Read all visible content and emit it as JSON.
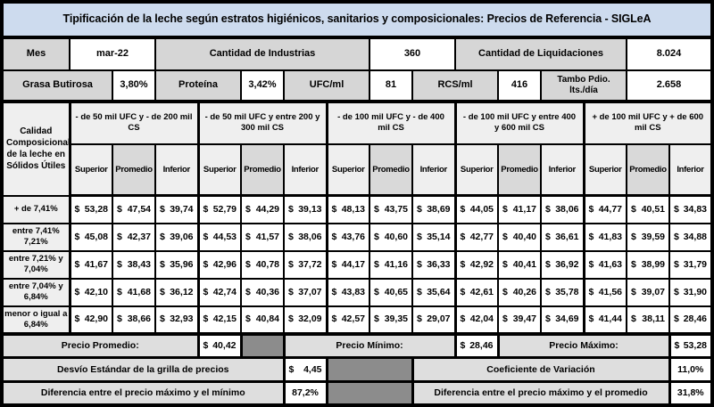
{
  "currency": "$",
  "title": "Tipificación de la leche según estratos higiénicos, sanitarios y composicionales: Precios de Referencia - SIGLeA",
  "info1": {
    "mes_label": "Mes",
    "mes_value": "mar-22",
    "industrias_label": "Cantidad de Industrias",
    "industrias_value": "360",
    "liquidaciones_label": "Cantidad de Liquidaciones",
    "liquidaciones_value": "8.024"
  },
  "info2": {
    "grasa_label": "Grasa Butirosa",
    "grasa_value": "3,80%",
    "proteina_label": "Proteína",
    "proteina_value": "3,42%",
    "ufc_label": "UFC/ml",
    "ufc_value": "81",
    "rcs_label": "RCS/ml",
    "rcs_value": "416",
    "tambo_label": "Tambo Pdio. lts./día",
    "tambo_value": "2.658"
  },
  "matrix": {
    "corner": "Calidad Composicional de la leche en Sólidos Útiles",
    "groups": [
      "- de 50 mil UFC y - de 200 mil CS",
      "- de 50 mil UFC y entre 200 y 300 mil CS",
      "- de 100 mil UFC y - de 400 mil CS",
      "- de 100 mil UFC y entre 400 y 600 mil CS",
      "+ de 100 mil UFC y + de 600 mil CS"
    ],
    "subheaders": [
      "Superior",
      "Promedio",
      "Inferior"
    ],
    "rows": [
      {
        "label": "+ de 7,41%",
        "values": [
          "53,28",
          "47,54",
          "39,74",
          "52,79",
          "44,29",
          "39,13",
          "48,13",
          "43,75",
          "38,69",
          "44,05",
          "41,17",
          "38,06",
          "44,77",
          "40,51",
          "34,83"
        ]
      },
      {
        "label": "entre 7,41% 7,21%",
        "values": [
          "45,08",
          "42,37",
          "39,06",
          "44,53",
          "41,57",
          "38,06",
          "43,76",
          "40,60",
          "35,14",
          "42,77",
          "40,40",
          "36,61",
          "41,83",
          "39,59",
          "34,88"
        ]
      },
      {
        "label": "entre 7,21% y 7,04%",
        "values": [
          "41,67",
          "38,43",
          "35,96",
          "42,96",
          "40,78",
          "37,72",
          "44,17",
          "41,16",
          "36,33",
          "42,92",
          "40,41",
          "36,92",
          "41,63",
          "38,99",
          "31,79"
        ]
      },
      {
        "label": "entre 7,04% y 6,84%",
        "values": [
          "42,10",
          "41,68",
          "36,12",
          "42,74",
          "40,36",
          "37,07",
          "43,83",
          "40,65",
          "35,64",
          "42,61",
          "40,26",
          "35,78",
          "41,56",
          "39,07",
          "31,90"
        ]
      },
      {
        "label": "menor o igual a 6,84%",
        "values": [
          "42,90",
          "38,66",
          "32,93",
          "42,15",
          "40,84",
          "32,09",
          "42,57",
          "39,35",
          "29,07",
          "42,04",
          "39,47",
          "34,69",
          "41,44",
          "38,11",
          "28,46"
        ]
      }
    ]
  },
  "summary": {
    "promedio_label": "Precio Promedio:",
    "promedio_value": "40,42",
    "minimo_label": "Precio Mínimo:",
    "minimo_value": "28,46",
    "maximo_label": "Precio Máximo:",
    "maximo_value": "53,28",
    "desvio_label": "Desvío Estándar de la grilla de precios",
    "desvio_value": "4,45",
    "coef_label": "Coeficiente de Variación",
    "coef_value": "11,0%",
    "dif_min_label": "Diferencia entre el precio máximo y el mínimo",
    "dif_min_value": "87,2%",
    "dif_prom_label": "Diferencia entre el precio máximo y el promedio",
    "dif_prom_value": "31,8%"
  },
  "colors": {
    "title_bg": "#cddbee",
    "info_label_bg": "#d6d6d6",
    "header_light_bg": "#efefef",
    "promedio_bg": "#d9d9d9",
    "summary_label_bg": "#dedede",
    "filler_bg": "#8c8c8c",
    "border": "#000000",
    "cell_bg": "#ffffff"
  }
}
